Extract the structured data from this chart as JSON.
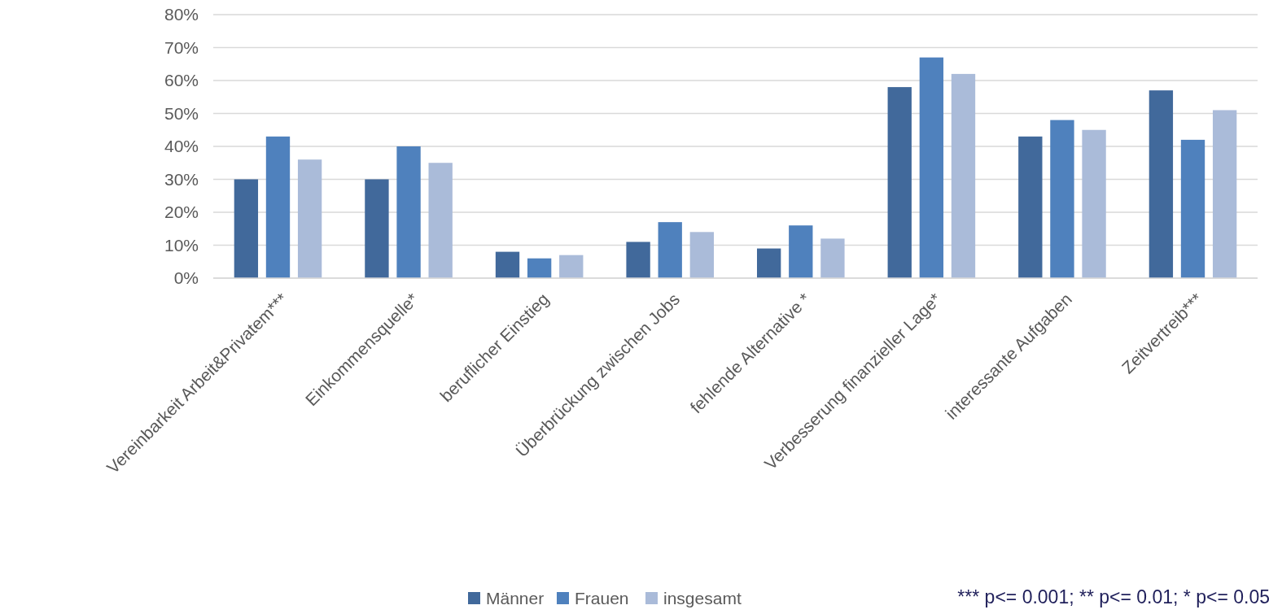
{
  "chart_data": {
    "type": "bar",
    "categories": [
      "Vereinbarkeit Arbeit&Privatem***",
      "Einkommensquelle*",
      "beruflicher Einstieg",
      "Überbrückung zwischen Jobs",
      "fehlende Alternative *",
      "Verbesserung finanzieller Lage*",
      "interessante Aufgaben",
      "Zeitvertreib***"
    ],
    "series": [
      {
        "name": "Männer",
        "color": "#41699b",
        "values": [
          30,
          30,
          8,
          11,
          9,
          58,
          43,
          57
        ]
      },
      {
        "name": "Frauen",
        "color": "#4f81bd",
        "values": [
          43,
          40,
          6,
          17,
          16,
          67,
          48,
          42
        ]
      },
      {
        "name": "insgesamt",
        "color": "#aabbd9",
        "values": [
          36,
          35,
          7,
          14,
          12,
          62,
          45,
          51
        ]
      }
    ],
    "ylim": [
      0,
      80
    ],
    "yticks": [
      {
        "value": 0,
        "label": "0%"
      },
      {
        "value": 10,
        "label": "10%"
      },
      {
        "value": 20,
        "label": "20%"
      },
      {
        "value": 30,
        "label": "30%"
      },
      {
        "value": 40,
        "label": "40%"
      },
      {
        "value": 50,
        "label": "50%"
      },
      {
        "value": 60,
        "label": "60%"
      },
      {
        "value": 70,
        "label": "70%"
      },
      {
        "value": 80,
        "label": "80%"
      }
    ],
    "grid": "y",
    "legend": "bottom",
    "annotations": [
      "*** p<= 0.001; ** p<= 0.01; * p<= 0.05"
    ]
  }
}
